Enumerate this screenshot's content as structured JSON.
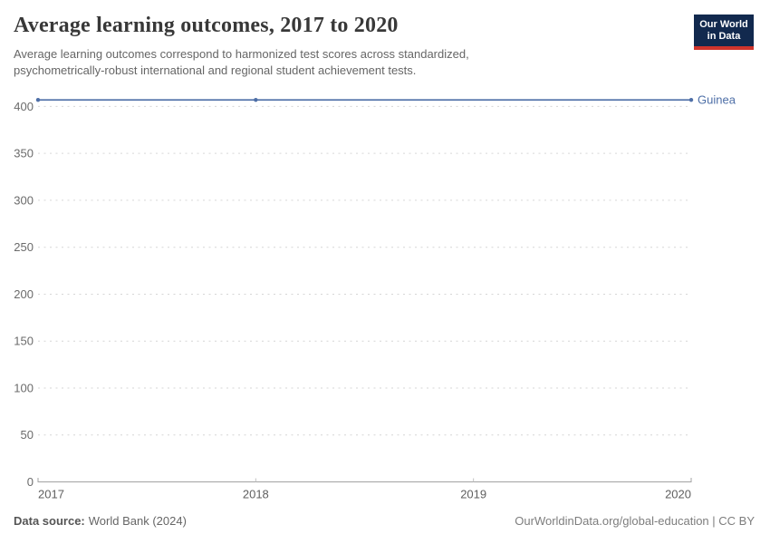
{
  "header": {
    "title": "Average learning outcomes, 2017 to 2020",
    "subtitle_lines": [
      "Average learning outcomes correspond to harmonized test scores across standardized,",
      "psychometrically-robust international and regional student achievement tests."
    ]
  },
  "logo": {
    "line1": "Our World",
    "line2": "in Data",
    "bg_color": "#12294e",
    "bar_color": "#d0342c"
  },
  "chart_data": {
    "type": "line",
    "title": "Average learning outcomes, 2017 to 2020",
    "x": [
      2017,
      2018,
      2020
    ],
    "series": [
      {
        "name": "Guinea",
        "values": [
          407,
          407,
          407
        ],
        "color": "#4e6fa7"
      }
    ],
    "xlabel": "",
    "ylabel": "",
    "xlim": [
      2017,
      2020
    ],
    "ylim": [
      0,
      400
    ],
    "xticks": [
      2017,
      2018,
      2019,
      2020
    ],
    "yticks": [
      0,
      50,
      100,
      150,
      200,
      250,
      300,
      350,
      400
    ],
    "grid": "horizontal-dashed",
    "legend_position": "end-of-line-label",
    "grid_color": "#d6d6d6",
    "axis_color": "#a3a3a3",
    "tick_label_color": "#6b6b6b"
  },
  "footer": {
    "datasource_label": "Data source:",
    "datasource_value": "World Bank (2024)",
    "credit": "OurWorldinData.org/global-education | CC BY"
  }
}
